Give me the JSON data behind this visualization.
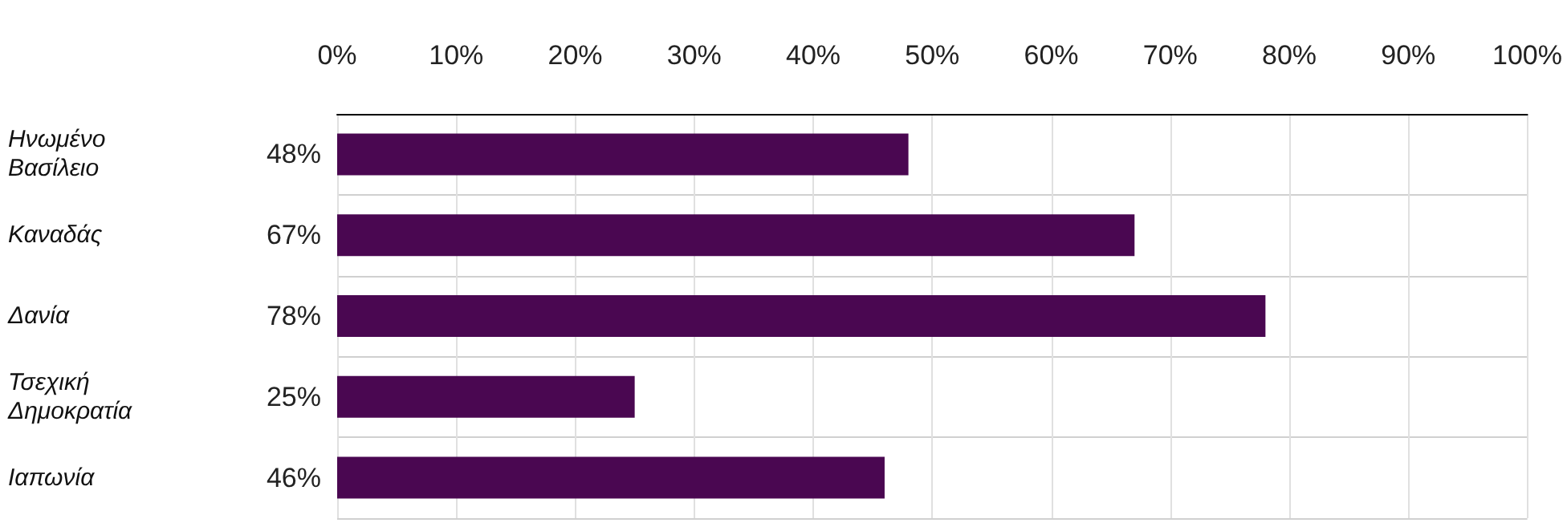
{
  "chart_data": {
    "type": "bar",
    "orientation": "horizontal",
    "categories": [
      "Ηνωμένο Βασίλειο",
      "Καναδάς",
      "Δανία",
      "Τσεχική Δημοκρατία",
      "Ιαπωνία"
    ],
    "values": [
      48,
      67,
      78,
      25,
      46
    ],
    "color": "#4a0751",
    "xlim": [
      0,
      100
    ],
    "xticks": [
      {
        "value": 0,
        "label": "0%"
      },
      {
        "value": 10,
        "label": "10%"
      },
      {
        "value": 20,
        "label": "20%"
      },
      {
        "value": 30,
        "label": "30%"
      },
      {
        "value": 40,
        "label": "40%"
      },
      {
        "value": 50,
        "label": "50%"
      },
      {
        "value": 60,
        "label": "60%"
      },
      {
        "value": 70,
        "label": "70%"
      },
      {
        "value": 80,
        "label": "80%"
      },
      {
        "value": 90,
        "label": "90%"
      },
      {
        "value": 100,
        "label": "100%"
      }
    ],
    "value_labels": [
      "48%",
      "67%",
      "78%",
      "25%",
      "46%"
    ],
    "grid": true
  }
}
